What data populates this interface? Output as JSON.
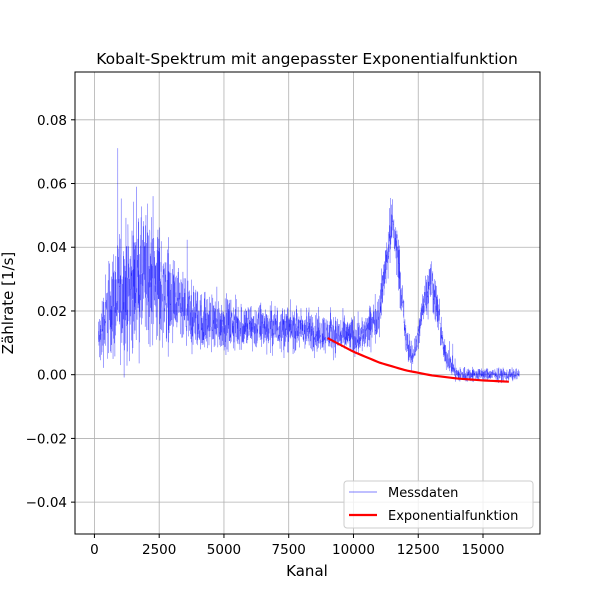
{
  "chart_data": {
    "type": "line",
    "title": "Kobalt-Spektrum mit angepasster Exponentialfunktion",
    "xlabel": "Kanal",
    "ylabel": "Zählrate [1/s]",
    "xlim": [
      -750,
      17200
    ],
    "ylim": [
      -0.05,
      0.095
    ],
    "xticks": [
      0,
      2500,
      5000,
      7500,
      10000,
      12500,
      15000
    ],
    "yticks": [
      -0.04,
      -0.02,
      0.0,
      0.02,
      0.04,
      0.06,
      0.08
    ],
    "ytick_labels": [
      "−0.04",
      "−0.02",
      "0.00",
      "0.02",
      "0.04",
      "0.06",
      "0.08"
    ],
    "grid": true,
    "legend_position": "lower-right",
    "series": [
      {
        "name": "Messdaten",
        "color": "#0000ff",
        "style": "thin noisy line",
        "x_range": [
          150,
          16400
        ],
        "envelope_channel": [
          150,
          500,
          1000,
          1500,
          2000,
          2500,
          3000,
          3500,
          4000,
          5000,
          6000,
          7000,
          8000,
          9000,
          10000,
          10500,
          11000,
          11250,
          11500,
          11750,
          12000,
          12250,
          12500,
          12750,
          13000,
          13250,
          13500,
          14000,
          15000,
          16400
        ],
        "envelope_center": [
          0.01,
          0.02,
          0.025,
          0.028,
          0.03,
          0.028,
          0.022,
          0.019,
          0.017,
          0.016,
          0.015,
          0.015,
          0.014,
          0.013,
          0.012,
          0.013,
          0.02,
          0.035,
          0.048,
          0.035,
          0.012,
          0.005,
          0.012,
          0.025,
          0.03,
          0.02,
          0.007,
          0.0,
          0.0,
          0.0
        ],
        "envelope_halfwidth": [
          0.012,
          0.022,
          0.03,
          0.03,
          0.03,
          0.028,
          0.02,
          0.016,
          0.014,
          0.012,
          0.011,
          0.01,
          0.01,
          0.009,
          0.009,
          0.009,
          0.01,
          0.012,
          0.014,
          0.012,
          0.008,
          0.006,
          0.007,
          0.01,
          0.012,
          0.01,
          0.006,
          0.004,
          0.003,
          0.003
        ]
      },
      {
        "name": "Exponentialfunktion",
        "color": "#ff0000",
        "style": "solid thick line",
        "x": [
          9000,
          10000,
          11000,
          12000,
          13000,
          14000,
          15000,
          16000
        ],
        "y": [
          0.0115,
          0.0072,
          0.0038,
          0.0014,
          -0.0002,
          -0.0012,
          -0.0018,
          -0.0022
        ]
      }
    ]
  }
}
